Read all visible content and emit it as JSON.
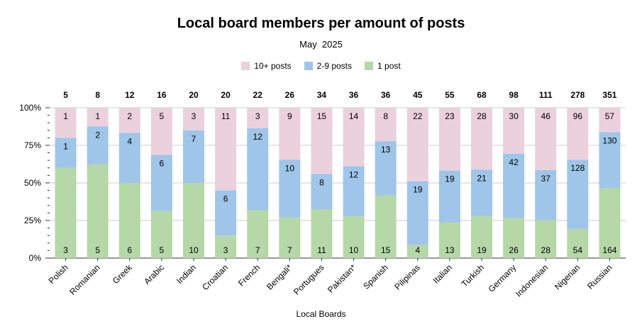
{
  "chart_data": {
    "type": "bar",
    "stacked": "percent",
    "title": "Local board members per amount of posts",
    "subtitle": "May  2025",
    "xlabel": "Local Boards",
    "ylabel": "",
    "ylim": [
      0,
      100
    ],
    "y_ticks": [
      "0%",
      "25%",
      "50%",
      "75%",
      "100%"
    ],
    "grid": true,
    "legend_position": "top",
    "categories": [
      "Polish",
      "Romanian",
      "Greek",
      "Arabic",
      "Indian",
      "Croatian",
      "French",
      "Bengali*",
      "Portugues",
      "Pakistan*",
      "Spanish",
      "Pilipinas",
      "Italian",
      "Turkish",
      "Germany",
      "Indonesian",
      "Nigerian",
      "Russian"
    ],
    "totals": [
      5,
      8,
      12,
      16,
      20,
      20,
      22,
      26,
      34,
      36,
      36,
      45,
      55,
      68,
      98,
      111,
      278,
      351
    ],
    "series": [
      {
        "name": "1 post",
        "color": "#b6d7a8",
        "values": [
          3,
          5,
          6,
          5,
          10,
          3,
          7,
          7,
          11,
          10,
          15,
          4,
          13,
          19,
          26,
          28,
          54,
          164
        ]
      },
      {
        "name": "2-9 posts",
        "color": "#9fc5e8",
        "values": [
          1,
          2,
          4,
          6,
          7,
          6,
          12,
          10,
          8,
          12,
          13,
          19,
          19,
          21,
          42,
          37,
          128,
          130
        ]
      },
      {
        "name": "10+ posts",
        "color": "#ead1dc",
        "values": [
          1,
          1,
          2,
          5,
          3,
          11,
          3,
          9,
          15,
          14,
          8,
          22,
          23,
          28,
          30,
          46,
          96,
          57
        ]
      }
    ],
    "legend_order": [
      "10+ posts",
      "2-9 posts",
      "1 post"
    ]
  }
}
